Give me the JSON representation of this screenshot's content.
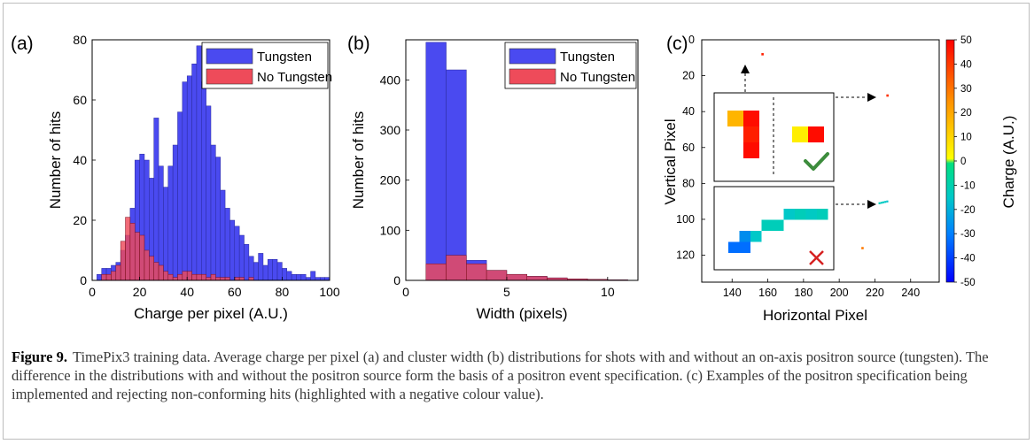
{
  "chart_data": [
    {
      "type": "bar",
      "panel": "(a)",
      "xlabel": "Charge per pixel (A.U.)",
      "ylabel": "Number of hits",
      "xlim": [
        0,
        100
      ],
      "ylim": [
        0,
        80
      ],
      "xticks": [
        0,
        20,
        40,
        60,
        80,
        100
      ],
      "yticks": [
        0,
        20,
        40,
        60,
        80
      ],
      "bin_width": 2,
      "bin_start": 2,
      "legend": "top-right",
      "series": [
        {
          "name": "Tungsten",
          "color": "#4a4af0",
          "values": [
            2,
            4,
            4,
            5,
            6,
            10,
            15,
            24,
            40,
            42,
            40,
            34,
            54,
            38,
            31,
            38,
            45,
            56,
            66,
            68,
            72,
            78,
            66,
            58,
            45,
            41,
            30,
            24,
            20,
            18,
            15,
            12,
            8,
            6,
            9,
            5,
            7,
            7,
            6,
            4,
            3,
            2,
            2,
            2,
            1,
            3,
            1,
            1,
            1,
            0,
            1,
            0,
            0,
            1,
            0,
            0,
            0,
            0,
            0,
            0,
            0,
            0,
            0,
            0,
            0,
            0,
            0,
            0,
            0,
            0,
            0,
            0,
            0,
            0,
            0,
            0,
            0,
            0,
            0,
            0,
            0,
            0,
            0,
            0,
            0,
            0,
            0,
            0,
            0,
            0,
            1,
            1,
            0,
            0,
            0,
            0,
            0,
            0,
            0,
            0
          ]
        },
        {
          "name": "No Tungsten",
          "color": "#ee4b5a",
          "values": [
            0,
            2,
            2,
            3,
            5,
            13,
            21,
            19,
            16,
            15,
            10,
            8,
            6,
            5,
            3,
            2,
            1,
            2,
            3,
            3,
            2,
            2,
            2,
            1,
            2,
            1,
            1,
            1,
            0,
            1,
            1,
            0,
            1,
            0,
            0,
            0,
            0,
            0,
            0,
            0,
            0,
            0,
            0,
            0,
            0,
            0,
            0,
            0,
            0,
            0
          ]
        }
      ]
    },
    {
      "type": "bar",
      "panel": "(b)",
      "xlabel": "Width (pixels)",
      "ylabel": "Number of hits",
      "xlim": [
        0,
        11.5
      ],
      "ylim": [
        0,
        480
      ],
      "xticks": [
        0,
        5,
        10
      ],
      "yticks": [
        0,
        100,
        200,
        300,
        400
      ],
      "bin_edges": [
        1,
        2,
        3,
        4,
        5,
        6,
        7,
        8,
        9,
        10,
        11
      ],
      "legend": "top-right",
      "series": [
        {
          "name": "Tungsten",
          "color": "#4a4af0",
          "values": [
            475,
            420,
            40,
            20,
            12,
            8,
            5,
            3,
            2,
            1
          ]
        },
        {
          "name": "No Tungsten",
          "color": "#ee4b5a",
          "values": [
            33,
            50,
            33,
            20,
            12,
            8,
            5,
            3,
            2,
            1
          ]
        }
      ]
    },
    {
      "type": "heatmap",
      "panel": "(c)",
      "xlabel": "Horizontal Pixel",
      "ylabel": "Vertical Pixel",
      "xlim": [
        123,
        256
      ],
      "ylim": [
        0,
        135
      ],
      "xticks": [
        140,
        160,
        180,
        200,
        220,
        240
      ],
      "yticks": [
        0,
        20,
        40,
        60,
        80,
        100,
        120
      ],
      "colorbar": {
        "label": "Charge (A.U.)",
        "min": -50,
        "max": 50,
        "ticks": [
          50,
          40,
          30,
          20,
          10,
          0,
          -10,
          -20,
          -30,
          -40,
          -50
        ]
      },
      "hits": [
        {
          "x": 157,
          "y": 8,
          "charge": 45
        },
        {
          "x": 227,
          "y": 31,
          "charge": 42
        },
        {
          "x": 225,
          "y": 90,
          "charge": -12
        },
        {
          "x": 213,
          "y": 116,
          "charge": 30
        }
      ],
      "insets": [
        {
          "verdict": "check-mark",
          "pixels": [
            {
              "col": 0,
              "row": 0,
              "charge": 18
            },
            {
              "col": 1,
              "row": 0,
              "charge": 48
            },
            {
              "col": 1,
              "row": 1,
              "charge": 45
            },
            {
              "col": 1,
              "row": 2,
              "charge": 48
            },
            {
              "col": 3,
              "row": 1,
              "charge": 5
            },
            {
              "col": 4,
              "row": 1,
              "charge": 48
            }
          ]
        },
        {
          "verdict": "cross-mark",
          "pixels": [
            {
              "col": 0,
              "row": 3,
              "charge": -30
            },
            {
              "col": 1,
              "row": 3,
              "charge": -30
            },
            {
              "col": 1,
              "row": 2,
              "charge": -25
            },
            {
              "col": 2,
              "row": 2,
              "charge": -15
            },
            {
              "col": 3,
              "row": 1,
              "charge": -12
            },
            {
              "col": 4,
              "row": 1,
              "charge": -12
            },
            {
              "col": 5,
              "row": 0,
              "charge": -15
            },
            {
              "col": 6,
              "row": 0,
              "charge": -12
            },
            {
              "col": 7,
              "row": 0,
              "charge": -14
            },
            {
              "col": 8,
              "row": 0,
              "charge": -12
            }
          ]
        }
      ]
    }
  ],
  "caption": {
    "label": "Figure 9.",
    "text": "TimePix3 training data. Average charge per pixel (a) and cluster width (b) distributions for shots with and without an on-axis positron source (tungsten). The difference in the distributions with and without the positron source form the basis of a positron event specification. (c) Examples of the positron specification being implemented and rejecting non-conforming hits (highlighted with a negative colour value)."
  }
}
